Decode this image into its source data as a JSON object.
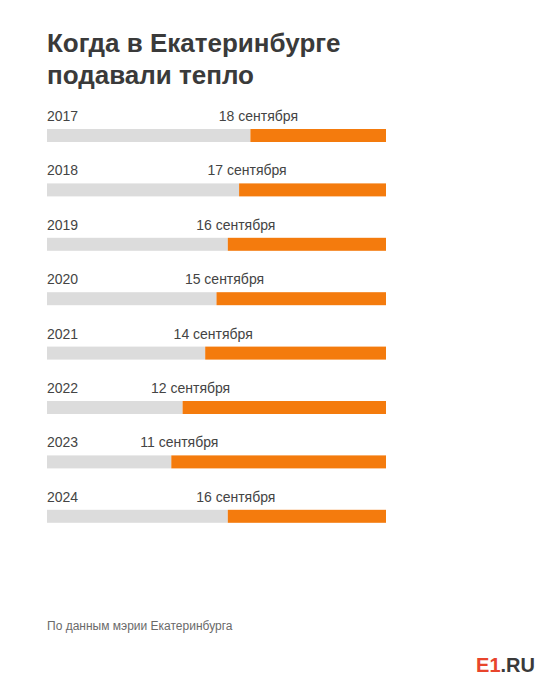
{
  "chart_data": {
    "type": "bar",
    "orientation": "horizontal",
    "title": "Когда в Екатеринбурге подавали тепло",
    "categories": [
      "2017",
      "2018",
      "2019",
      "2020",
      "2021",
      "2022",
      "2023",
      "2024"
    ],
    "values": [
      18,
      17,
      16,
      15,
      14,
      12,
      11,
      16
    ],
    "value_labels": [
      "18 сентября",
      "17 сентября",
      "16 сентября",
      "15 сентября",
      "14 сентября",
      "12 сентября",
      "11 сентября",
      "16 сентября"
    ],
    "data_labels": true,
    "color": "#f47b0d",
    "xlim": [
      0,
      30
    ],
    "tick_labels": "y",
    "grid": false,
    "source": "По данным мэрии Екатеринбурга",
    "logo": "E1.RU"
  }
}
